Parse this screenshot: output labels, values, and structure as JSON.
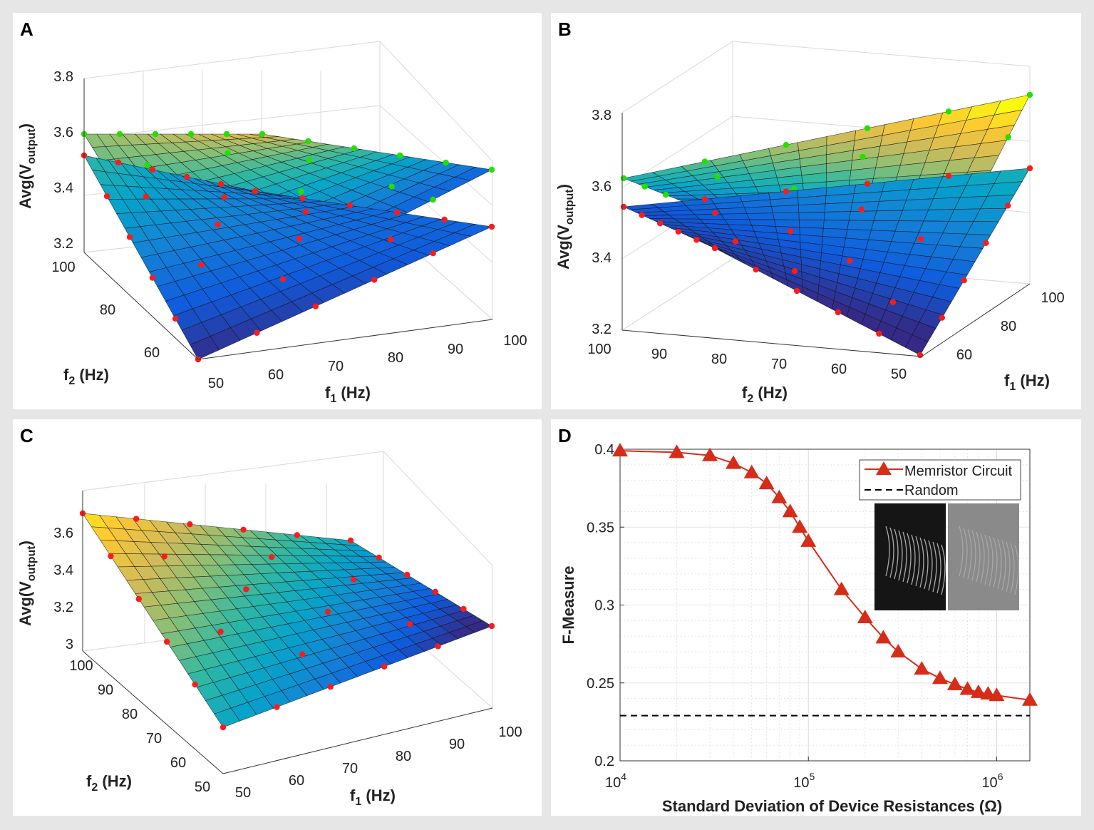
{
  "panels": [
    {
      "id": "A",
      "label": "A",
      "zlabel": "Avg(V",
      "zlabel_sub": "output",
      "zlabel_end": ")",
      "zticks": [
        "3.2",
        "3.4",
        "3.6",
        "3.8"
      ],
      "xlabel": "f",
      "xlabel_sub": "1",
      "xlabel_end": " (Hz)",
      "xticks": [
        "50",
        "60",
        "70",
        "80",
        "90",
        "100"
      ],
      "ylabel": "f",
      "ylabel_sub": "2",
      "ylabel_end": " (Hz)",
      "yticks": [
        "60",
        "80",
        "100"
      ],
      "series": [
        {
          "name": "upper surface",
          "marker_color": "#22e000"
        },
        {
          "name": "lower surface",
          "marker_color": "#ff1a1a"
        }
      ]
    },
    {
      "id": "B",
      "label": "B",
      "zlabel": "Avg(V",
      "zlabel_sub": "output",
      "zlabel_end": ")",
      "zticks": [
        "3.2",
        "3.4",
        "3.6",
        "3.8"
      ],
      "xlabel": "f",
      "xlabel_sub": "2",
      "xlabel_end": " (Hz)",
      "xticks": [
        "100",
        "90",
        "80",
        "70",
        "60",
        "50"
      ],
      "ylabel": "f",
      "ylabel_sub": "1",
      "ylabel_end": " (Hz)",
      "yticks": [
        "60",
        "80",
        "100"
      ],
      "series": [
        {
          "name": "upper surface",
          "marker_color": "#22e000"
        },
        {
          "name": "lower surface",
          "marker_color": "#ff1a1a"
        }
      ]
    },
    {
      "id": "C",
      "label": "C",
      "zlabel": "Avg(V",
      "zlabel_sub": "output",
      "zlabel_end": ")",
      "zticks": [
        "3",
        "3.2",
        "3.4",
        "3.6"
      ],
      "xlabel": "f",
      "xlabel_sub": "1",
      "xlabel_end": " (Hz)",
      "xticks": [
        "50",
        "60",
        "70",
        "80",
        "90",
        "100"
      ],
      "ylabel": "f",
      "ylabel_sub": "2",
      "ylabel_end": " (Hz)",
      "yticks": [
        "50",
        "60",
        "70",
        "80",
        "90",
        "100"
      ],
      "series": [
        {
          "name": "surface",
          "marker_color": "#ff1a1a"
        }
      ]
    }
  ],
  "chart_data": [
    {
      "panel": "A",
      "type": "surface",
      "title": "",
      "xlabel": "f1 (Hz)",
      "ylabel": "f2 (Hz)",
      "zlabel": "Avg(Voutput)",
      "xlim": [
        50,
        100
      ],
      "ylim": [
        50,
        100
      ],
      "zlim": [
        3.2,
        3.8
      ],
      "grid": true
    },
    {
      "panel": "B",
      "type": "surface",
      "title": "",
      "xlabel": "f2 (Hz)",
      "ylabel": "f1 (Hz)",
      "zlabel": "Avg(Voutput)",
      "xlim": [
        50,
        100
      ],
      "ylim": [
        50,
        100
      ],
      "zlim": [
        3.2,
        3.8
      ],
      "grid": true
    },
    {
      "panel": "C",
      "type": "surface",
      "title": "",
      "xlabel": "f1 (Hz)",
      "ylabel": "f2 (Hz)",
      "zlabel": "Avg(Voutput)",
      "xlim": [
        50,
        100
      ],
      "ylim": [
        50,
        100
      ],
      "zlim": [
        3.0,
        3.7
      ],
      "grid": true
    },
    {
      "panel": "D",
      "type": "line",
      "title": "",
      "xlabel": "Standard Deviation of Device Resistances (Ω)",
      "ylabel": "F-Measure",
      "xscale": "log",
      "xlim": [
        10000,
        1500000
      ],
      "ylim": [
        0.2,
        0.4
      ],
      "xticks": [
        "10^4",
        "10^5",
        "10^6"
      ],
      "yticks": [
        "0.2",
        "0.25",
        "0.3",
        "0.35",
        "0.4"
      ],
      "grid": true,
      "legend_position": "top-right",
      "series": [
        {
          "name": "Memristor Circuit",
          "color": "#d62c1a",
          "marker": "triangle",
          "x": [
            10000,
            20000,
            30000,
            40000,
            50000,
            60000,
            70000,
            80000,
            90000,
            100000,
            150000,
            200000,
            250000,
            300000,
            400000,
            500000,
            600000,
            700000,
            800000,
            900000,
            1000000,
            1500000
          ],
          "y": [
            0.399,
            0.398,
            0.396,
            0.391,
            0.385,
            0.378,
            0.369,
            0.36,
            0.35,
            0.341,
            0.31,
            0.292,
            0.279,
            0.27,
            0.259,
            0.253,
            0.249,
            0.246,
            0.244,
            0.243,
            0.242,
            0.239
          ]
        },
        {
          "name": "Random",
          "color": "#000000",
          "style": "dashed",
          "y_const": 0.229
        }
      ]
    }
  ]
}
